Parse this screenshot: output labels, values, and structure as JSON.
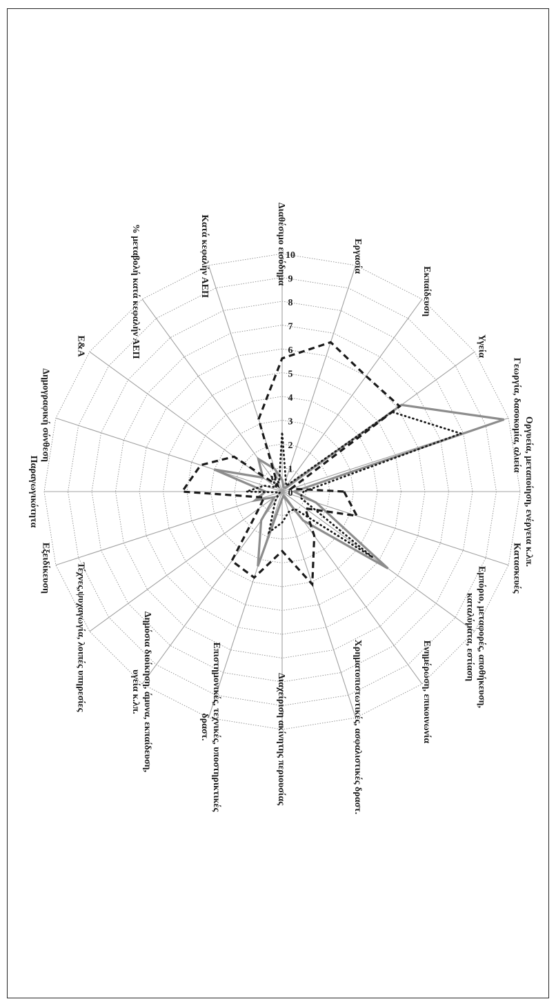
{
  "chart_data": {
    "type": "radar",
    "title": "",
    "categories": [
      [
        "Οργυεία, μεταποίηση, ενέργεια κ.λπ."
      ],
      [
        "Κατασκευές"
      ],
      [
        "Εμπόριο, μεταφορές, αποθήκευση,",
        "καταλύματα, εστίαση"
      ],
      [
        "Ενημέρωση, επικοινωνία"
      ],
      [
        "Χρηματοπιστωτικές, ασφαλιστικές δραστ."
      ],
      [
        "Διαχείριση ακίνητης περιουσίας"
      ],
      [
        "Επιστημονικές, τεχνικές, υποστηρικτικές",
        "δραστ."
      ],
      [
        "Δημόσια διοίκηση, άμυνα, εκπαίδευση,",
        "υγεία κ.λπ."
      ],
      [
        "Τέχνες,ψυχαγωγία, λοιπές υπηρεσίες"
      ],
      [
        "Εξειδίκευση"
      ],
      [
        "Παραγωγικότητα"
      ],
      [
        "Δημογραφική σύνθεση"
      ],
      [
        "Ε&Α"
      ],
      [
        "% μεταβολή κατά κεφαλήν ΑΕΠ"
      ],
      [
        "Κατά κεφαλήν ΑΕΠ"
      ],
      [
        "Διαθέσιμο εισόδημα"
      ],
      [
        "Εργασία"
      ],
      [
        "Εκπαίδευση"
      ],
      [
        "Υγεία"
      ],
      [
        "Γεωργία, δασοκομία, αλιεία"
      ]
    ],
    "r_ticks": [
      "0",
      "1",
      "2",
      "3",
      "4",
      "5",
      "6",
      "7",
      "8",
      "9",
      "10"
    ],
    "rlim": [
      0,
      10
    ],
    "series": [
      {
        "style": "solid-gray",
        "color": "#8c8c8c",
        "values": [
          0.5,
          1.5,
          5.5,
          1.5,
          0.2,
          0.3,
          3.3,
          1.5,
          0.4,
          1.2,
          0.7,
          3.0,
          1.0,
          1.7,
          1.0,
          0.5,
          0.2,
          0.2,
          6.2,
          9.8
        ]
      },
      {
        "style": "dashed-black",
        "color": "#1a1a1a",
        "values": [
          2.6,
          3.3,
          1.2,
          2.3,
          4.1,
          2.5,
          3.8,
          3.6,
          1.2,
          0.8,
          4.2,
          3.6,
          2.5,
          0.3,
          3.2,
          5.6,
          6.6,
          6.0,
          6.1,
          0.4
        ]
      },
      {
        "style": "dotted-black",
        "color": "#1a1a1a",
        "values": [
          0.9,
          0.8,
          4.7,
          0.9,
          0.9,
          1.3,
          1.8,
          0.5,
          0.2,
          0.1,
          1.5,
          0.8,
          0.3,
          0.8,
          0.4,
          2.5,
          0.5,
          0.3,
          5.7,
          7.9
        ]
      }
    ],
    "grid": true,
    "legend": "none"
  }
}
